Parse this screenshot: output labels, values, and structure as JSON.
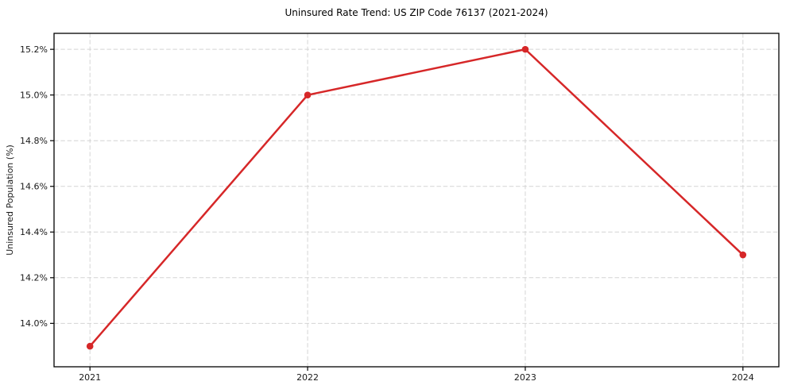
{
  "page": {
    "background": "#ffffff"
  },
  "chart_data": {
    "type": "line",
    "title": "Uninsured Rate Trend: US ZIP Code 76137 (2021-2024)",
    "xlabel": "",
    "ylabel": "Uninsured Population (%)",
    "x": [
      2021,
      2022,
      2023,
      2024
    ],
    "values": [
      13.9,
      15.0,
      15.2,
      14.3
    ],
    "x_tick_labels": [
      "2021",
      "2022",
      "2023",
      "2024"
    ],
    "y_ticks": [
      14.0,
      14.2,
      14.4,
      14.6,
      14.8,
      15.0,
      15.2
    ],
    "y_tick_labels": [
      "14.0%",
      "14.2%",
      "14.4%",
      "14.6%",
      "14.8%",
      "15.0%",
      "15.2%"
    ],
    "xlim": [
      2020.835,
      2024.165
    ],
    "ylim": [
      13.81,
      15.27
    ],
    "grid": true,
    "legend_position": "none",
    "line_color": "#d62728",
    "marker": "circle",
    "grid_color": "#d4d4d4",
    "spine_color": "#000000",
    "tick_text_color": "#1a1a1a"
  }
}
